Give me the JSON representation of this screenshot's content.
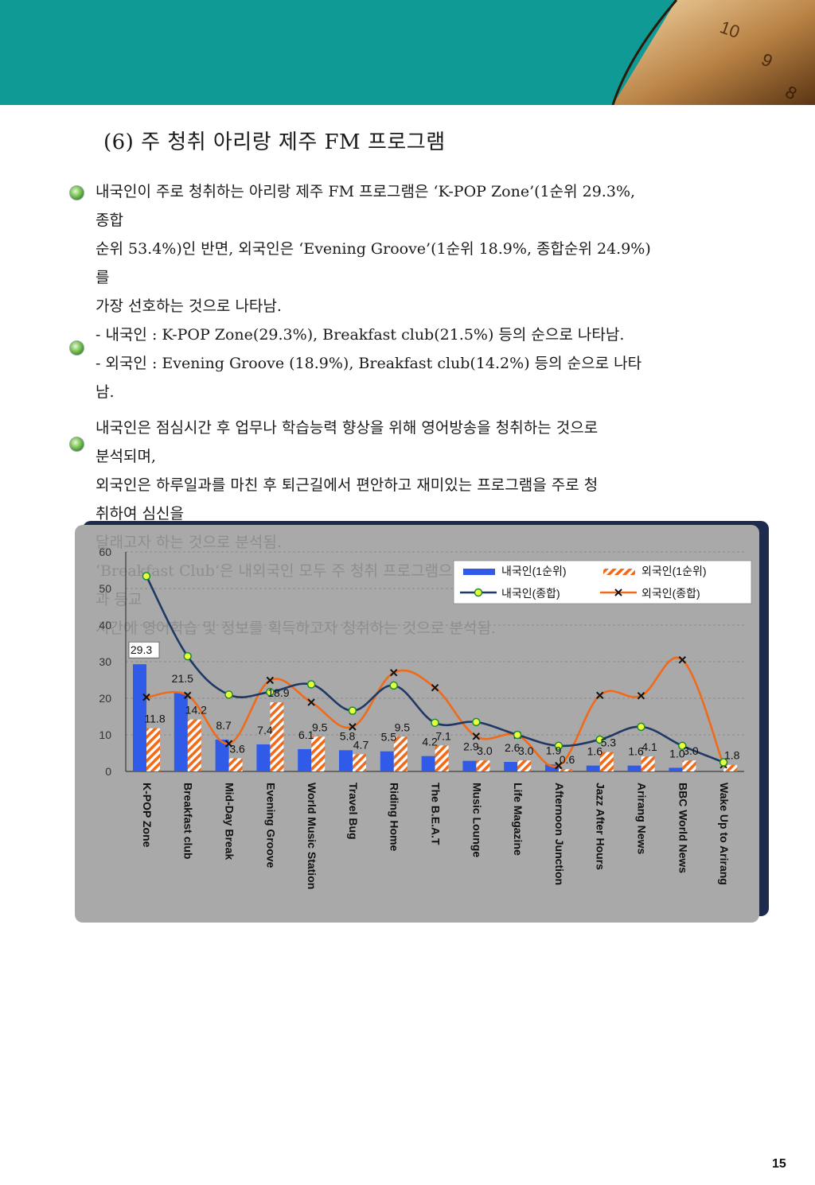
{
  "heading": "(6) 주 청취 아리랑 제주 FM 프로그램",
  "intro": {
    "lines": [
      "내국인이 주로 청취하는 아리랑 제주 FM 프로그램은 ‘K-POP Zone’(1순위 29.3%,",
      "종합",
      "순위 53.4%)인 반면, 외국인은 ‘Evening Groove’(1순위 18.9%, 종합순위  24.9%)",
      "를",
      "가장 선호하는 것으로 나타남.",
      "- 내국인 : K-POP Zone(29.3%), Breakfast club(21.5%) 등의 순으로 나타남.",
      "- 외국인 : Evening Groove (18.9%), Breakfast club(14.2%) 등의 순으로 나타",
      "남."
    ]
  },
  "analysis": {
    "lines": [
      "내국인은 점심시간 후 업무나 학습능력 향상을 위해 영어방송을 청취하는 것으로",
      "분석되며,",
      "외국인은 하루일과를 마친 후 퇴근길에서 편안하고 재미있는 프로그램을 주로 청",
      "취하여 심신을"
    ],
    "hidden_lines": [
      "달래고자 하는 것으로 분석됨.",
      "‘Breakfast Club’은 내외국인 모두 주 청취 프로그램으로 나타났는데, 이는 출근",
      "과 등교",
      "시간에 영어학습 및 정보를 획득하고자 청취하는 것으로 분석됨."
    ]
  },
  "page_number": "15",
  "colors": {
    "header_band": "#0f9a96",
    "domestic_bar": "#2f5be8",
    "foreign_bar": "#f06a1a",
    "domestic_line": "#1f3864",
    "foreign_line": "#f06a1a",
    "panel": "#a9a9a9"
  },
  "chart_data": {
    "type": "bar",
    "categories": [
      "K-POP Zone",
      "Breakfast club",
      "Mid-Day Break",
      "Evening Groove",
      "World Music Station",
      "Travel Bug",
      "Riding Home",
      "The B.E.A.T",
      "Music Lounge",
      "Life Magazine",
      "Afternoon Junction",
      "Jazz After Hours",
      "Arirang News",
      "BBC World News",
      "Wake Up to Arirang"
    ],
    "ylim": [
      0,
      60
    ],
    "yticks": [
      "0",
      "10",
      "20",
      "30",
      "40",
      "50",
      "60"
    ],
    "grid": true,
    "legend_position": "top-right",
    "series": [
      {
        "name": "내국인(1순위)",
        "kind": "bar",
        "color": "#2f5be8",
        "values": [
          29.3,
          21.5,
          8.7,
          7.4,
          6.1,
          5.8,
          5.5,
          4.2,
          2.9,
          2.6,
          1.9,
          1.6,
          1.6,
          1.0,
          null
        ],
        "labels": [
          "29.3",
          "21.5",
          "8.7",
          "7.4",
          "6.1",
          "5.8",
          "5.5",
          "4.2",
          "2.9",
          "2.6",
          "1.9",
          "1.6",
          "1.6",
          "1.0",
          ""
        ]
      },
      {
        "name": "외국인(1순위)",
        "kind": "bar",
        "color": "#f06a1a",
        "pattern": "stripe",
        "values": [
          11.8,
          14.2,
          3.6,
          18.9,
          9.5,
          4.7,
          9.5,
          7.1,
          3.0,
          3.0,
          0.6,
          5.3,
          4.1,
          3.0,
          1.8
        ],
        "labels": [
          "11.8",
          "14.2",
          "3.6",
          "18.9",
          "9.5",
          "4.7",
          "9.5",
          "7.1",
          "3.0",
          "3.0",
          "0.6",
          "5.3",
          "4.1",
          "3.0",
          "1.8"
        ]
      },
      {
        "name": "내국인(종합)",
        "kind": "line",
        "color": "#1f3864",
        "values": [
          53.4,
          31.5,
          21.0,
          21.7,
          23.8,
          16.6,
          23.5,
          13.3,
          13.5,
          10.0,
          7.0,
          8.7,
          12.2,
          7.0,
          2.5
        ]
      },
      {
        "name": "외국인(종합)",
        "kind": "line",
        "color": "#f06a1a",
        "values": [
          20.3,
          20.8,
          7.6,
          24.9,
          18.9,
          12.2,
          27.0,
          22.9,
          9.6,
          9.9,
          1.6,
          20.8,
          20.7,
          30.5,
          1.8
        ]
      }
    ]
  }
}
